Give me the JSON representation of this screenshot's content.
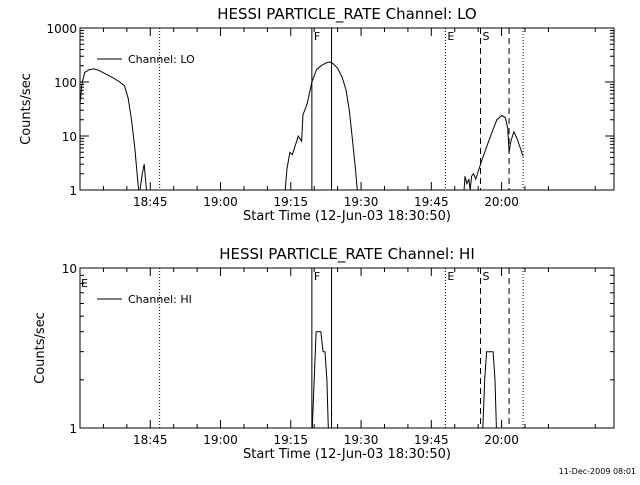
{
  "footer": {
    "timestamp": "11-Dec-2009 08:01"
  },
  "chart_data": [
    {
      "type": "line",
      "title": "HESSI PARTICLE_RATE Channel: LO",
      "xlabel": "Start Time (12-Jun-03 18:30:50)",
      "ylabel": "Counts/sec",
      "yscale": "log",
      "ylim": [
        1,
        1000
      ],
      "xlim_min": [
        0,
        114
      ],
      "x_tick_labels": [
        "18:45",
        "19:00",
        "19:15",
        "19:30",
        "19:45",
        "20:00"
      ],
      "x_tick_minutes": [
        15,
        30,
        45,
        60,
        75,
        90
      ],
      "y_tick_labels": [
        "1",
        "10",
        "100",
        "1000"
      ],
      "y_tick_values": [
        1,
        10,
        100,
        1000
      ],
      "legend": {
        "position": "top-left",
        "label": "Channel: LO"
      },
      "markers": [
        {
          "label": "F",
          "style": "solid",
          "x_min": 49.5
        },
        {
          "label": "",
          "style": "solid",
          "x_min": 53.7
        },
        {
          "label": "E",
          "style": "dotted",
          "x_min": 78.0
        },
        {
          "label": "S",
          "style": "dashed",
          "x_min": 85.5
        },
        {
          "label": "",
          "style": "dashed",
          "x_min": 91.6
        },
        {
          "label": "",
          "style": "dotted",
          "x_min": 94.6
        }
      ],
      "dotted_lines_min": [
        17.0
      ],
      "series": [
        {
          "name": "Channel: LO",
          "segments": [
            [
              [
                0.0,
                40
              ],
              [
                0.5,
                100
              ],
              [
                1.0,
                150
              ],
              [
                2.0,
                170
              ],
              [
                3.0,
                175
              ],
              [
                4.0,
                165
              ],
              [
                5.5,
                140
              ],
              [
                7.0,
                120
              ],
              [
                8.5,
                100
              ],
              [
                9.5,
                85
              ],
              [
                10.3,
                50
              ],
              [
                11.0,
                20
              ],
              [
                11.7,
                6
              ],
              [
                12.2,
                2
              ],
              [
                12.5,
                1
              ]
            ],
            [
              [
                12.8,
                1
              ],
              [
                13.3,
                2
              ],
              [
                13.7,
                3
              ],
              [
                14.0,
                1.5
              ],
              [
                14.2,
                1
              ]
            ],
            [
              [
                43.8,
                1
              ],
              [
                44.2,
                2.5
              ],
              [
                44.8,
                5
              ],
              [
                45.3,
                4.5
              ],
              [
                45.8,
                6
              ],
              [
                46.6,
                10
              ],
              [
                47.3,
                8
              ],
              [
                47.6,
                25
              ],
              [
                48.0,
                30
              ],
              [
                48.5,
                40
              ],
              [
                49.5,
                100
              ],
              [
                50.5,
                170
              ],
              [
                51.5,
                200
              ],
              [
                52.5,
                225
              ],
              [
                53.3,
                235
              ],
              [
                54.0,
                220
              ],
              [
                55.0,
                180
              ],
              [
                56.0,
                120
              ],
              [
                56.8,
                70
              ],
              [
                57.5,
                30
              ],
              [
                58.2,
                8
              ],
              [
                58.8,
                2.5
              ],
              [
                59.2,
                1
              ]
            ],
            [
              [
                82.0,
                1
              ],
              [
                82.2,
                1.8
              ],
              [
                82.6,
                1.3
              ],
              [
                83.0,
                1.6
              ],
              [
                83.3,
                1
              ],
              [
                83.6,
                1.8
              ],
              [
                84.0,
                2
              ],
              [
                84.5,
                1.6
              ],
              [
                85.0,
                2.2
              ],
              [
                86.0,
                4
              ],
              [
                87.0,
                7
              ],
              [
                88.0,
                12
              ],
              [
                89.0,
                20
              ],
              [
                90.0,
                24
              ],
              [
                90.8,
                22
              ],
              [
                91.3,
                14
              ],
              [
                91.6,
                5
              ],
              [
                92.0,
                8
              ],
              [
                92.6,
                12
              ],
              [
                93.3,
                9
              ],
              [
                94.0,
                6
              ],
              [
                94.6,
                4.2
              ]
            ]
          ]
        }
      ]
    },
    {
      "type": "line",
      "title": "HESSI PARTICLE_RATE Channel: HI",
      "xlabel": "Start Time (12-Jun-03 18:30:50)",
      "ylabel": "Counts/sec",
      "yscale": "log",
      "ylim": [
        1,
        10
      ],
      "xlim_min": [
        0,
        114
      ],
      "x_tick_labels": [
        "18:45",
        "19:00",
        "19:15",
        "19:30",
        "19:45",
        "20:00"
      ],
      "x_tick_minutes": [
        15,
        30,
        45,
        60,
        75,
        90
      ],
      "y_tick_labels": [
        "1",
        "10"
      ],
      "y_tick_values": [
        1,
        10
      ],
      "legend": {
        "position": "top-left",
        "label": "Channel: HI"
      },
      "corner_label": "E",
      "markers": [
        {
          "label": "F",
          "style": "solid",
          "x_min": 49.5
        },
        {
          "label": "",
          "style": "solid",
          "x_min": 53.7
        },
        {
          "label": "E",
          "style": "dotted",
          "x_min": 78.0
        },
        {
          "label": "S",
          "style": "dashed",
          "x_min": 85.5
        },
        {
          "label": "",
          "style": "dashed",
          "x_min": 91.6
        },
        {
          "label": "",
          "style": "dotted",
          "x_min": 94.6
        }
      ],
      "dotted_lines_min": [
        17.0
      ],
      "series": [
        {
          "name": "Channel: HI",
          "segments": [
            [
              [
                49.6,
                1
              ],
              [
                50.0,
                2
              ],
              [
                50.4,
                4
              ],
              [
                51.4,
                4
              ],
              [
                51.9,
                3
              ],
              [
                52.3,
                3
              ],
              [
                52.7,
                2
              ],
              [
                53.0,
                1
              ]
            ],
            [
              [
                86.0,
                1
              ],
              [
                86.4,
                2
              ],
              [
                86.8,
                3
              ],
              [
                88.2,
                3
              ],
              [
                88.6,
                2
              ],
              [
                88.9,
                1
              ]
            ]
          ]
        }
      ]
    }
  ]
}
